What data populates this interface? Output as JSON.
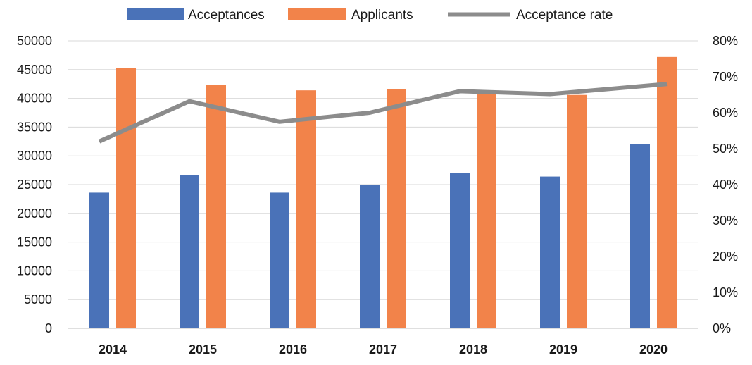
{
  "chart_data": {
    "type": "bar",
    "categories": [
      "2014",
      "2015",
      "2016",
      "2017",
      "2018",
      "2019",
      "2020"
    ],
    "series": [
      {
        "name": "Acceptances",
        "kind": "bar",
        "axis": "left",
        "color": "#4a72b8",
        "values": [
          23600,
          26700,
          23600,
          25000,
          27000,
          26400,
          32000
        ]
      },
      {
        "name": "Applicants",
        "kind": "bar",
        "axis": "left",
        "color": "#f2834a",
        "values": [
          45300,
          42300,
          41400,
          41600,
          41000,
          40600,
          47200
        ]
      },
      {
        "name": "Acceptance rate",
        "kind": "line",
        "axis": "right",
        "color": "#8c8c8c",
        "values": [
          0.52,
          0.632,
          0.575,
          0.6,
          0.66,
          0.652,
          0.68
        ]
      }
    ],
    "y_left": {
      "min": 0,
      "max": 50000,
      "step": 5000
    },
    "y_right": {
      "min": 0,
      "max": 0.8,
      "step": 0.1,
      "format": "percent"
    },
    "grid": true,
    "legend_position": "top"
  }
}
